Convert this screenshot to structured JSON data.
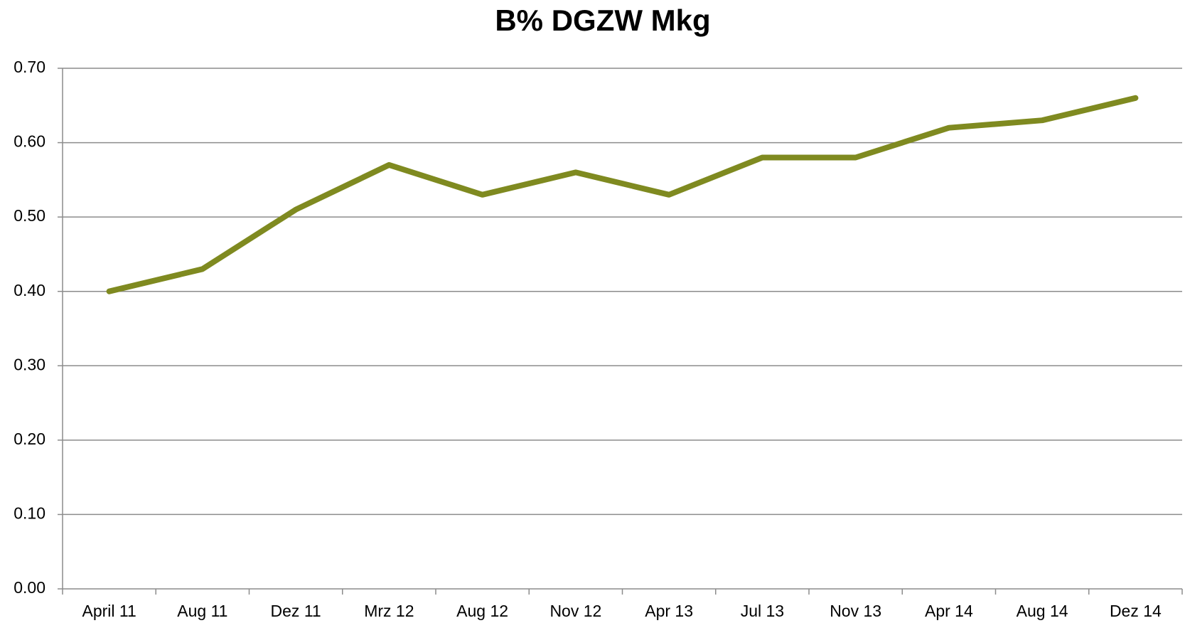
{
  "chart_data": {
    "type": "line",
    "title": "B% DGZW Mkg",
    "categories": [
      "April 11",
      "Aug 11",
      "Dez 11",
      "Mrz 12",
      "Aug 12",
      "Nov 12",
      "Apr 13",
      "Jul 13",
      "Nov 13",
      "Apr 14",
      "Aug 14",
      "Dez 14"
    ],
    "series": [
      {
        "name": "B% DGZW Mkg",
        "color": "#7f8a20",
        "values": [
          0.4,
          0.43,
          0.51,
          0.57,
          0.53,
          0.56,
          0.53,
          0.58,
          0.58,
          0.62,
          0.63,
          0.66
        ]
      }
    ],
    "ylim": [
      0,
      0.7
    ],
    "yticks": [
      {
        "value": 0,
        "label": "0.00"
      },
      {
        "value": 0.1,
        "label": "0.10"
      },
      {
        "value": 0.2,
        "label": "0.20"
      },
      {
        "value": 0.3,
        "label": "0.30"
      },
      {
        "value": 0.4,
        "label": "0.40"
      },
      {
        "value": 0.5,
        "label": "0.50"
      },
      {
        "value": 0.6,
        "label": "0.60"
      },
      {
        "value": 0.7,
        "label": "0.70"
      }
    ],
    "grid": true
  }
}
